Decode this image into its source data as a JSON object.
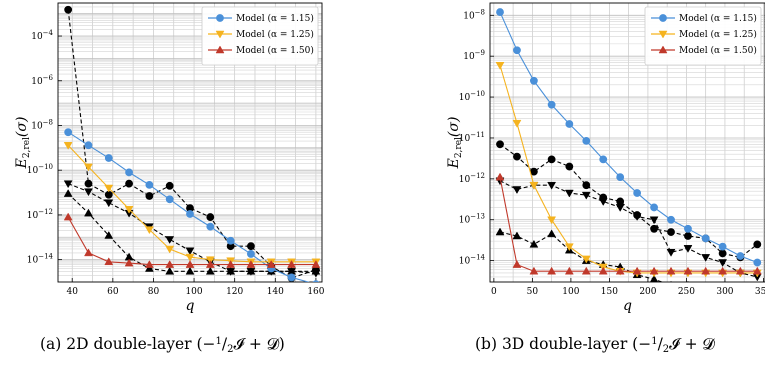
{
  "chart_data": [
    {
      "type": "line",
      "xlabel": "q",
      "ylabel": "E_{2,rel}(σ)",
      "xlim": [
        33,
        163
      ],
      "ylim": [
        1e-15,
        0.003
      ],
      "yscale": "log",
      "grid": true,
      "legend_position": "top-right",
      "xticks": [
        40,
        60,
        80,
        100,
        120,
        140,
        160
      ],
      "yticks": [
        {
          "v": 0.0001,
          "label": "10",
          "exp": "−4"
        },
        {
          "v": 1e-06,
          "label": "10",
          "exp": "−6"
        },
        {
          "v": 1e-08,
          "label": "10",
          "exp": "−8"
        },
        {
          "v": 1e-10,
          "label": "10",
          "exp": "−10"
        },
        {
          "v": 1e-12,
          "label": "10",
          "exp": "−12"
        },
        {
          "v": 1e-14,
          "label": "10",
          "exp": "−14"
        }
      ],
      "series": [
        {
          "name": "Model (α = 1.15)",
          "color": "#4a90d9",
          "marker": "circle",
          "dash": false,
          "x": [
            38,
            48,
            58,
            68,
            78,
            88,
            98,
            108,
            118,
            128,
            138,
            148,
            160
          ],
          "y": [
            5e-09,
            1.3e-09,
            3.5e-10,
            8e-11,
            2.2e-11,
            5e-12,
            1.1e-12,
            3e-13,
            7e-14,
            1.8e-14,
            4e-15,
            1.6e-15,
            8e-16
          ]
        },
        {
          "name": "Model (α = 1.25)",
          "color": "#f5b31f",
          "marker": "triangle-down",
          "dash": false,
          "x": [
            38,
            48,
            58,
            68,
            78,
            88,
            98,
            108,
            118,
            128,
            138,
            148,
            160
          ],
          "y": [
            1.3e-09,
            1.4e-10,
            1.6e-11,
            1.8e-12,
            2.2e-13,
            3e-14,
            1.3e-14,
            1e-14,
            9e-15,
            8e-15,
            8e-15,
            8e-15,
            8e-15
          ]
        },
        {
          "name": "Model (α = 1.50)",
          "color": "#c0392b",
          "marker": "triangle-up",
          "dash": false,
          "x": [
            38,
            48,
            58,
            68,
            78,
            88,
            98,
            108,
            118,
            128,
            138,
            148,
            160
          ],
          "y": [
            8e-13,
            2e-14,
            8e-15,
            7e-15,
            6e-15,
            6e-15,
            6e-15,
            6e-15,
            6e-15,
            6e-15,
            6e-15,
            6e-15,
            6e-15
          ]
        },
        {
          "name": "",
          "color": "#000000",
          "marker": "circle",
          "dash": true,
          "x": [
            38,
            48,
            58,
            68,
            78,
            88,
            98,
            108,
            118,
            128,
            138,
            148,
            160
          ],
          "y": [
            0.0015,
            2.5e-11,
            8e-12,
            2.5e-11,
            7e-12,
            2e-11,
            2e-12,
            8e-13,
            4e-14,
            4e-14,
            5e-15,
            1.5e-15,
            3.5e-15
          ]
        },
        {
          "name": "",
          "color": "#000000",
          "marker": "triangle-down",
          "dash": true,
          "x": [
            38,
            48,
            58,
            68,
            78,
            88,
            98,
            108,
            118,
            128,
            138,
            148,
            160
          ],
          "y": [
            2.5e-11,
            1.1e-11,
            3.5e-12,
            1.2e-12,
            3e-13,
            8e-14,
            2.5e-14,
            8e-15,
            3e-15,
            3e-15,
            3e-15,
            3e-15,
            2.5e-15
          ]
        },
        {
          "name": "",
          "color": "#000000",
          "marker": "triangle-up",
          "dash": true,
          "x": [
            38,
            48,
            58,
            68,
            78,
            88,
            98,
            108,
            118,
            128,
            138,
            148,
            160
          ],
          "y": [
            9e-12,
            1.2e-12,
            1.2e-13,
            1.3e-14,
            4e-15,
            3e-15,
            3e-15,
            3e-15,
            3e-15,
            3e-15,
            3e-15,
            3e-15,
            3e-15
          ]
        }
      ]
    },
    {
      "type": "line",
      "xlabel": "q",
      "ylabel": "E_{2,rel}(σ)",
      "xlim": [
        -5,
        352
      ],
      "ylim": [
        3e-15,
        2e-08
      ],
      "yscale": "log",
      "grid": true,
      "legend_position": "top-right",
      "xticks": [
        0,
        50,
        100,
        150,
        200,
        250,
        300,
        350
      ],
      "yticks": [
        {
          "v": 1e-08,
          "label": "10",
          "exp": "−8"
        },
        {
          "v": 1e-09,
          "label": "10",
          "exp": "−9"
        },
        {
          "v": 1e-10,
          "label": "10",
          "exp": "−10"
        },
        {
          "v": 1e-11,
          "label": "10",
          "exp": "−11"
        },
        {
          "v": 1e-12,
          "label": "10",
          "exp": "−12"
        },
        {
          "v": 1e-13,
          "label": "10",
          "exp": "−13"
        },
        {
          "v": 1e-14,
          "label": "10",
          "exp": "−14"
        }
      ],
      "series": [
        {
          "name": "Model (α = 1.15)",
          "color": "#4a90d9",
          "marker": "circle",
          "dash": false,
          "x": [
            8,
            30,
            52,
            75,
            98,
            120,
            142,
            164,
            186,
            208,
            230,
            252,
            275,
            297,
            320,
            342
          ],
          "y": [
            1.2e-08,
            1.4e-09,
            2.5e-10,
            6.5e-11,
            2.2e-11,
            8.5e-12,
            3e-12,
            1.1e-12,
            4.5e-13,
            2e-13,
            1e-13,
            6e-14,
            3.5e-14,
            2.2e-14,
            1.3e-14,
            9e-15
          ]
        },
        {
          "name": "Model (α = 1.25)",
          "color": "#f5b31f",
          "marker": "triangle-down",
          "dash": false,
          "x": [
            8,
            30,
            52,
            75,
            98,
            120,
            142,
            164,
            186,
            208,
            230,
            252,
            275,
            297,
            320,
            342
          ],
          "y": [
            6e-10,
            2.3e-11,
            7e-13,
            1e-13,
            2.2e-14,
            1.1e-14,
            7e-15,
            5.5e-15,
            5e-15,
            5e-15,
            5e-15,
            5e-15,
            5e-15,
            5e-15,
            5e-15,
            5e-15
          ]
        },
        {
          "name": "Model (α = 1.50)",
          "color": "#c0392b",
          "marker": "triangle-up",
          "dash": false,
          "x": [
            8,
            30,
            52,
            75,
            98,
            120,
            142,
            164,
            186,
            208,
            230,
            252,
            275,
            297,
            320,
            342
          ],
          "y": [
            1.1e-12,
            8e-15,
            5.5e-15,
            5.5e-15,
            5.5e-15,
            5.5e-15,
            5.5e-15,
            5.5e-15,
            5.5e-15,
            5.5e-15,
            5.5e-15,
            5.5e-15,
            5.5e-15,
            5.5e-15,
            5.5e-15,
            5.5e-15
          ]
        },
        {
          "name": "",
          "color": "#000000",
          "marker": "circle",
          "dash": true,
          "x": [
            8,
            30,
            52,
            75,
            98,
            120,
            142,
            164,
            186,
            208,
            230,
            252,
            275,
            297,
            320,
            342
          ],
          "y": [
            7e-12,
            3.5e-12,
            1.5e-12,
            3e-12,
            2e-12,
            7e-13,
            3.5e-13,
            2.8e-13,
            1.3e-13,
            6e-14,
            5e-14,
            4e-14,
            3.5e-14,
            1.5e-14,
            1.2e-14,
            2.5e-14
          ]
        },
        {
          "name": "",
          "color": "#000000",
          "marker": "triangle-down",
          "dash": true,
          "x": [
            8,
            30,
            52,
            75,
            98,
            120,
            142,
            164,
            186,
            208,
            230,
            252,
            275,
            297,
            320,
            342
          ],
          "y": [
            9e-13,
            5.5e-13,
            7e-13,
            7e-13,
            4.5e-13,
            4e-13,
            2.8e-13,
            2e-13,
            1.2e-13,
            1e-13,
            1.6e-14,
            2e-14,
            1.2e-14,
            9e-15,
            5e-15,
            4e-15
          ]
        },
        {
          "name": "",
          "color": "#000000",
          "marker": "triangle-up",
          "dash": true,
          "x": [
            8,
            30,
            52,
            75,
            98,
            120,
            142,
            164,
            186,
            208,
            230,
            252,
            275,
            297,
            320,
            342
          ],
          "y": [
            5e-14,
            4e-14,
            2.5e-14,
            4.5e-14,
            1.8e-14,
            1e-14,
            8e-15,
            7e-15,
            4.5e-15,
            3.5e-15,
            2.5e-15,
            2.5e-15,
            2.2e-15,
            2e-15,
            2e-15,
            2e-15
          ]
        }
      ]
    }
  ],
  "captions": [
    {
      "prefix": "(a) 2D double-layer (−",
      "num": "1",
      "den": "2",
      "suffix": "𝓘 + 𝓓)"
    },
    {
      "prefix": "(b) 3D double-layer (−",
      "num": "1",
      "den": "2",
      "suffix": "𝓘 + 𝓓"
    }
  ]
}
